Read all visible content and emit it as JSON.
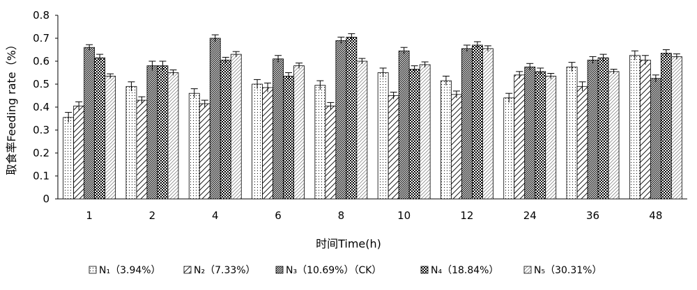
{
  "chart_data": {
    "type": "bar",
    "xlabel": "时间Time(h)",
    "ylabel": "取食率Feeding rate（%）",
    "ylim": [
      0,
      0.8
    ],
    "yticks": [
      "0",
      "0.1",
      "0.2",
      "0.3",
      "0.4",
      "0.5",
      "0.6",
      "0.7",
      "0.8"
    ],
    "categories": [
      "1",
      "2",
      "4",
      "6",
      "8",
      "10",
      "12",
      "24",
      "36",
      "48"
    ],
    "series": [
      {
        "name": "N₁（3.94%）",
        "pattern": "dots",
        "values": [
          0.355,
          0.49,
          0.46,
          0.5,
          0.495,
          0.55,
          0.515,
          0.44,
          0.575,
          0.625
        ],
        "errors": [
          0.022,
          0.02,
          0.02,
          0.02,
          0.02,
          0.02,
          0.02,
          0.02,
          0.02,
          0.02
        ]
      },
      {
        "name": "N₂（7.33%）",
        "pattern": "diag-wide",
        "values": [
          0.405,
          0.43,
          0.415,
          0.485,
          0.405,
          0.45,
          0.455,
          0.54,
          0.49,
          0.605
        ],
        "errors": [
          0.018,
          0.015,
          0.015,
          0.02,
          0.015,
          0.015,
          0.015,
          0.015,
          0.02,
          0.02
        ]
      },
      {
        "name": "N₃（10.69%）（CK）",
        "pattern": "diag-dense",
        "values": [
          0.66,
          0.58,
          0.7,
          0.61,
          0.69,
          0.645,
          0.655,
          0.575,
          0.605,
          0.525
        ],
        "errors": [
          0.012,
          0.02,
          0.015,
          0.015,
          0.015,
          0.015,
          0.015,
          0.015,
          0.015,
          0.015
        ]
      },
      {
        "name": "N₄（18.84%）",
        "pattern": "checker",
        "values": [
          0.615,
          0.58,
          0.605,
          0.535,
          0.705,
          0.565,
          0.67,
          0.555,
          0.615,
          0.635
        ],
        "errors": [
          0.015,
          0.02,
          0.012,
          0.015,
          0.015,
          0.015,
          0.015,
          0.015,
          0.015,
          0.015
        ]
      },
      {
        "name": "N₅（30.31%）",
        "pattern": "diag-light",
        "values": [
          0.535,
          0.55,
          0.63,
          0.58,
          0.6,
          0.585,
          0.655,
          0.535,
          0.555,
          0.62
        ],
        "errors": [
          0.01,
          0.012,
          0.012,
          0.012,
          0.012,
          0.012,
          0.012,
          0.012,
          0.01,
          0.012
        ]
      }
    ],
    "legend_position": "bottom",
    "grid": false
  }
}
